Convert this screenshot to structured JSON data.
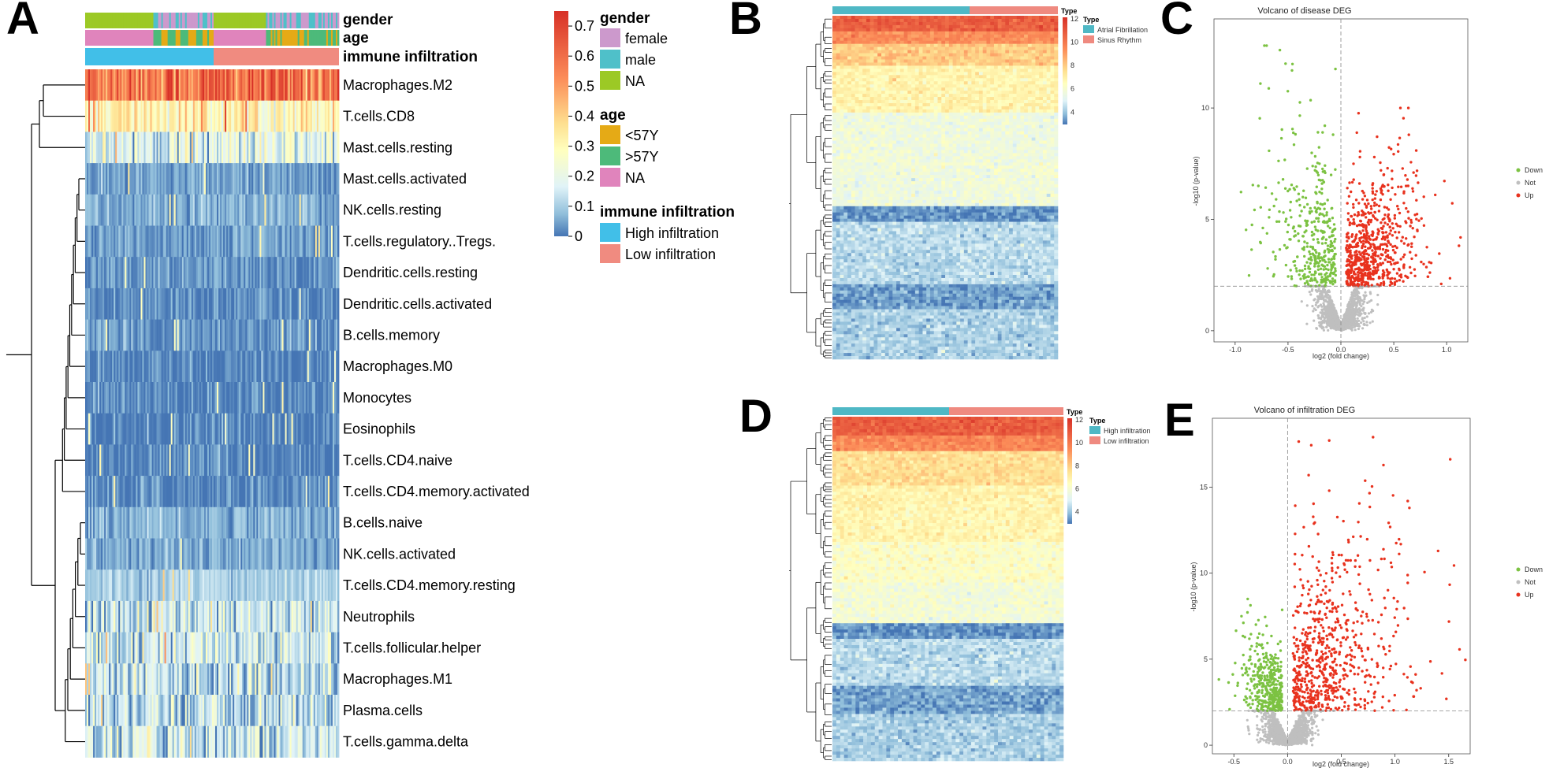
{
  "panels": {
    "A": "A",
    "B": "B",
    "C": "C",
    "D": "D",
    "E": "E"
  },
  "panelA": {
    "annotation_labels": [
      "gender",
      "age",
      "immune infiltration"
    ],
    "rows": [
      "Macrophages.M2",
      "T.cells.CD8",
      "Mast.cells.resting",
      "Mast.cells.activated",
      "NK.cells.resting",
      "T.cells.regulatory..Tregs.",
      "Dendritic.cells.resting",
      "Dendritic.cells.activated",
      "B.cells.memory",
      "Macrophages.M0",
      "Monocytes",
      "Eosinophils",
      "T.cells.CD4.naive",
      "T.cells.CD4.memory.activated",
      "B.cells.naive",
      "NK.cells.activated",
      "T.cells.CD4.memory.resting",
      "Neutrophils",
      "T.cells.follicular.helper",
      "Macrophages.M1",
      "Plasma.cells",
      "T.cells.gamma.delta"
    ],
    "colorbar": {
      "ticks": [
        "0.7",
        "0.6",
        "0.5",
        "0.4",
        "0.3",
        "0.2",
        "0.1",
        "0"
      ]
    },
    "legend": {
      "gender": {
        "title": "gender",
        "items": [
          {
            "label": "female",
            "color": "#cc99cc"
          },
          {
            "label": "male",
            "color": "#4fc0c9"
          },
          {
            "label": "NA",
            "color": "#9cc925"
          }
        ]
      },
      "age": {
        "title": "age",
        "items": [
          {
            "label": "<57Y",
            "color": "#e5aa16"
          },
          {
            "label": ">57Y",
            "color": "#4dba7a"
          },
          {
            "label": "NA",
            "color": "#e084bc"
          }
        ]
      },
      "immune": {
        "title": "immune infiltration",
        "items": [
          {
            "label": "High infiltration",
            "color": "#41bfe8"
          },
          {
            "label": "Low infiltration",
            "color": "#f08b80"
          }
        ]
      }
    }
  },
  "panelB": {
    "type_label": "Type",
    "legend_title": "Type",
    "items": [
      {
        "label": "Atrial Fibrillation",
        "color": "#4fb8c5"
      },
      {
        "label": "Sinus Rhythm",
        "color": "#ef8a80"
      }
    ],
    "colorbar_ticks": [
      "12",
      "10",
      "8",
      "6",
      "4"
    ]
  },
  "panelD": {
    "type_label": "Type",
    "legend_title": "Type",
    "items": [
      {
        "label": "High infiltration",
        "color": "#4fb8c5"
      },
      {
        "label": "Low infiltration",
        "color": "#ef8a80"
      }
    ],
    "colorbar_ticks": [
      "12",
      "10",
      "8",
      "6",
      "4"
    ]
  },
  "panelC": {
    "title": "Volcano of disease DEG",
    "xlabel": "log2 (fold change)",
    "ylabel": "-log10 (p-value)",
    "xticks": [
      "-1.0",
      "-0.5",
      "0.0",
      "0.5",
      "1.0"
    ],
    "yticks": [
      "0",
      "5",
      "10"
    ],
    "legend": [
      "Down",
      "Not",
      "Up"
    ]
  },
  "panelE": {
    "title": "Volcano of infiltration DEG",
    "xlabel": "log2 (fold change)",
    "ylabel": "-log10 (p-value)",
    "xticks": [
      "-0.5",
      "0.0",
      "0.5",
      "1.0",
      "1.5"
    ],
    "yticks": [
      "0",
      "5",
      "10",
      "15"
    ],
    "legend": [
      "Down",
      "Not",
      "Up"
    ]
  },
  "colors": {
    "down": "#7cc242",
    "not": "#bfbfbf",
    "up": "#e8321e"
  },
  "chart_data": [
    {
      "type": "heatmap",
      "panel": "A",
      "rows": [
        "Macrophages.M2",
        "T.cells.CD8",
        "Mast.cells.resting",
        "Mast.cells.activated",
        "NK.cells.resting",
        "T.cells.regulatory..Tregs.",
        "Dendritic.cells.resting",
        "Dendritic.cells.activated",
        "B.cells.memory",
        "Macrophages.M0",
        "Monocytes",
        "Eosinophils",
        "T.cells.CD4.naive",
        "T.cells.CD4.memory.activated",
        "B.cells.naive",
        "NK.cells.activated",
        "T.cells.CD4.memory.resting",
        "Neutrophils",
        "T.cells.follicular.helper",
        "Macrophages.M1",
        "Plasma.cells",
        "T.cells.gamma.delta"
      ],
      "approx_row_mean": [
        0.55,
        0.3,
        0.17,
        0.04,
        0.05,
        0.04,
        0.03,
        0.02,
        0.03,
        0.01,
        0.02,
        0.01,
        0.01,
        0.02,
        0.06,
        0.05,
        0.1,
        0.13,
        0.15,
        0.12,
        0.12,
        0.13
      ],
      "value_range": [
        0,
        0.7
      ]
    },
    {
      "type": "scatter",
      "panel": "C",
      "title": "Volcano of disease DEG",
      "xlabel": "log2 (fold change)",
      "ylabel": "-log10 (p-value)",
      "xlim": [
        -1.2,
        1.2
      ],
      "ylim": [
        -0.5,
        14
      ],
      "threshold_y": 2,
      "series": [
        {
          "name": "Down",
          "x_range": [
            -1.0,
            -0.05
          ],
          "y_range": [
            2,
            12.8
          ]
        },
        {
          "name": "Not",
          "x_range": [
            -0.6,
            0.6
          ],
          "y_range": [
            0,
            2
          ]
        },
        {
          "name": "Up",
          "x_range": [
            0.05,
            1.1
          ],
          "y_range": [
            2,
            10
          ]
        }
      ]
    },
    {
      "type": "scatter",
      "panel": "E",
      "title": "Volcano of infiltration DEG",
      "xlabel": "log2 (fold change)",
      "ylabel": "-log10 (p-value)",
      "xlim": [
        -0.7,
        1.7
      ],
      "ylim": [
        -0.5,
        19
      ],
      "threshold_y": 2,
      "series": [
        {
          "name": "Down",
          "x_range": [
            -0.6,
            -0.05
          ],
          "y_range": [
            2,
            8.5
          ]
        },
        {
          "name": "Not",
          "x_range": [
            -0.4,
            0.5
          ],
          "y_range": [
            0,
            2
          ]
        },
        {
          "name": "Up",
          "x_range": [
            0.05,
            1.6
          ],
          "y_range": [
            2,
            17.9
          ]
        }
      ]
    }
  ]
}
